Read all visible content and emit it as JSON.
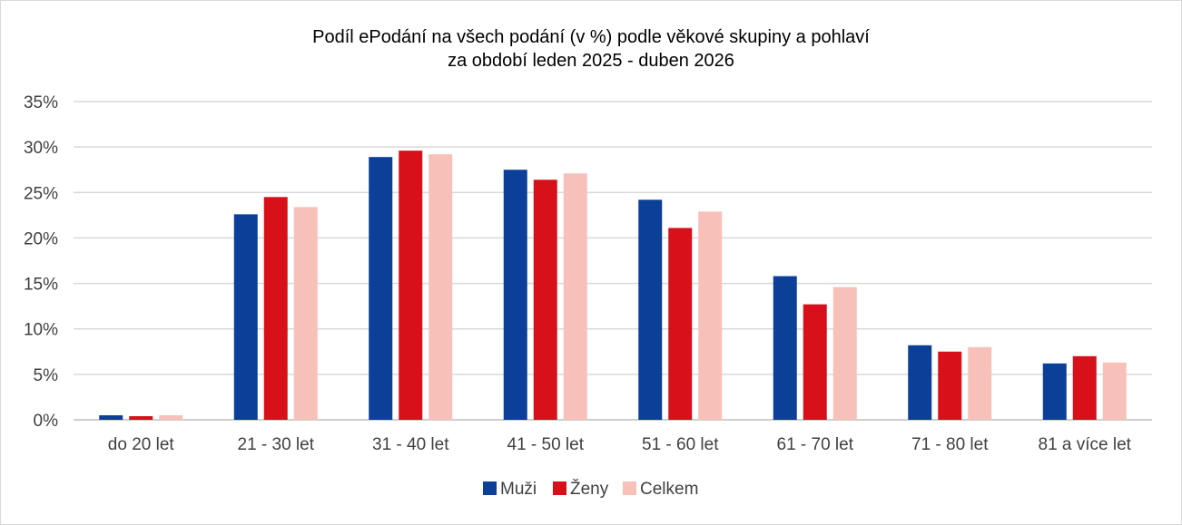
{
  "chart_data": {
    "type": "bar",
    "title": "Podíl ePodání na všech podání (v %) podle věkové skupiny a pohlaví",
    "subtitle": "za období leden 2025 - duben 2026",
    "categories": [
      "do 20 let",
      "21 - 30 let",
      "31 - 40 let",
      "41 - 50 let",
      "51 - 60 let",
      "61 - 70 let",
      "71 - 80 let",
      "81 a více let"
    ],
    "series": [
      {
        "name": "Muži",
        "color": "#0b3f98",
        "values": [
          0.5,
          22.6,
          28.9,
          27.5,
          24.2,
          15.8,
          8.2,
          6.2
        ]
      },
      {
        "name": "Ženy",
        "color": "#d7101a",
        "values": [
          0.4,
          24.5,
          29.6,
          26.4,
          21.1,
          12.7,
          7.5,
          7.0
        ]
      },
      {
        "name": "Celkem",
        "color": "#f7c1ba",
        "values": [
          0.5,
          23.4,
          29.2,
          27.1,
          22.9,
          14.6,
          8.0,
          6.3
        ]
      }
    ],
    "ylim": [
      0,
      35
    ],
    "yticks": [
      "0%",
      "5%",
      "10%",
      "15%",
      "20%",
      "25%",
      "30%",
      "35%"
    ],
    "grid": true,
    "legend_position": "bottom"
  }
}
